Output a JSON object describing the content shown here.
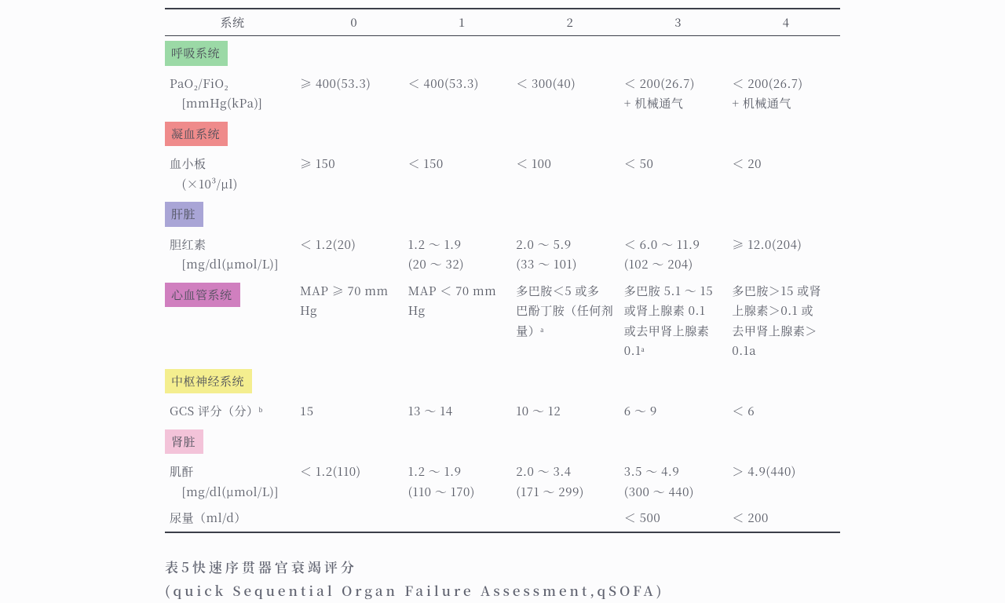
{
  "colors": {
    "respiratory": "#9bd9a6",
    "coagulation": "#ef8b8b",
    "liver": "#a9a5d6",
    "cardio": "#d07fbf",
    "cns": "#f4ee8f",
    "renal": "#f3c3d9"
  },
  "header": {
    "system": "系统",
    "c0": "0",
    "c1": "1",
    "c2": "2",
    "c3": "3",
    "c4": "4"
  },
  "sections": {
    "respiratory": {
      "label": "呼吸系统",
      "row_label": "PaO₂/FiO₂",
      "row_unit": "　[mmHg(kPa)]",
      "v0": "≥ 400(53.3)",
      "v1": "＜ 400(53.3)",
      "v2": "＜ 300(40)",
      "v3": "＜ 200(26.7)\n+ 机械通气",
      "v4": "＜ 200(26.7)\n+ 机械通气"
    },
    "coagulation": {
      "label": "凝血系统",
      "row_label": "血小板",
      "row_unit": "　(×10³/μl)",
      "v0": "≥ 150",
      "v1": "＜ 150",
      "v2": "＜ 100",
      "v3": "＜ 50",
      "v4": "＜ 20"
    },
    "liver": {
      "label": "肝脏",
      "row_label": "胆红素",
      "row_unit": "　[mg/dl(μmol/L)]",
      "v0": "＜ 1.2(20)",
      "v1": "1.2 ～ 1.9\n(20 ～ 32)",
      "v2": "2.0 ～ 5.9\n(33 ～ 101)",
      "v3": "＜ 6.0 ～ 11.9\n(102 ～ 204)",
      "v4": "≥ 12.0(204)"
    },
    "cardio": {
      "label": "心血管系统",
      "v0": "MAP ≥ 70 mm\nHg",
      "v1": "MAP ＜ 70 mm\nHg",
      "v2": "多巴胺＜5 或多\n巴酚丁胺（任何剂\n量）ᵃ",
      "v3": "多巴胺 5.1 ～ 15\n或肾上腺素 0.1\n或去甲肾上腺素\n0.1ᵃ",
      "v4": "多巴胺＞15 或肾\n上腺素＞0.1 或\n去甲肾上腺素＞\n0.1a"
    },
    "cns": {
      "label": "中枢神经系统",
      "row_label": "GCS 评分（分）ᵇ",
      "v0": "15",
      "v1": "13 ～ 14",
      "v2": "10 ～ 12",
      "v3": "6 ～ 9",
      "v4": "＜ 6"
    },
    "renal": {
      "label": "肾脏",
      "row1_label": "肌酐",
      "row1_unit": "　[mg/dl(μmol/L)]",
      "r1v0": "＜ 1.2(110)",
      "r1v1": "1.2 ～ 1.9\n(110 ～ 170)",
      "r1v2": "2.0 ～ 3.4\n(171 ～ 299)",
      "r1v3": "3.5 ～ 4.9\n(300 ～ 440)",
      "r1v4": "＞ 4.9(440)",
      "row2_label": "尿量（ml/d）",
      "r2v3": "＜ 500",
      "r2v4": "＜ 200"
    }
  },
  "caption": "表5快速序贯器官衰竭评分(quick Sequential Organ Failure Assessment,qSOFA)"
}
